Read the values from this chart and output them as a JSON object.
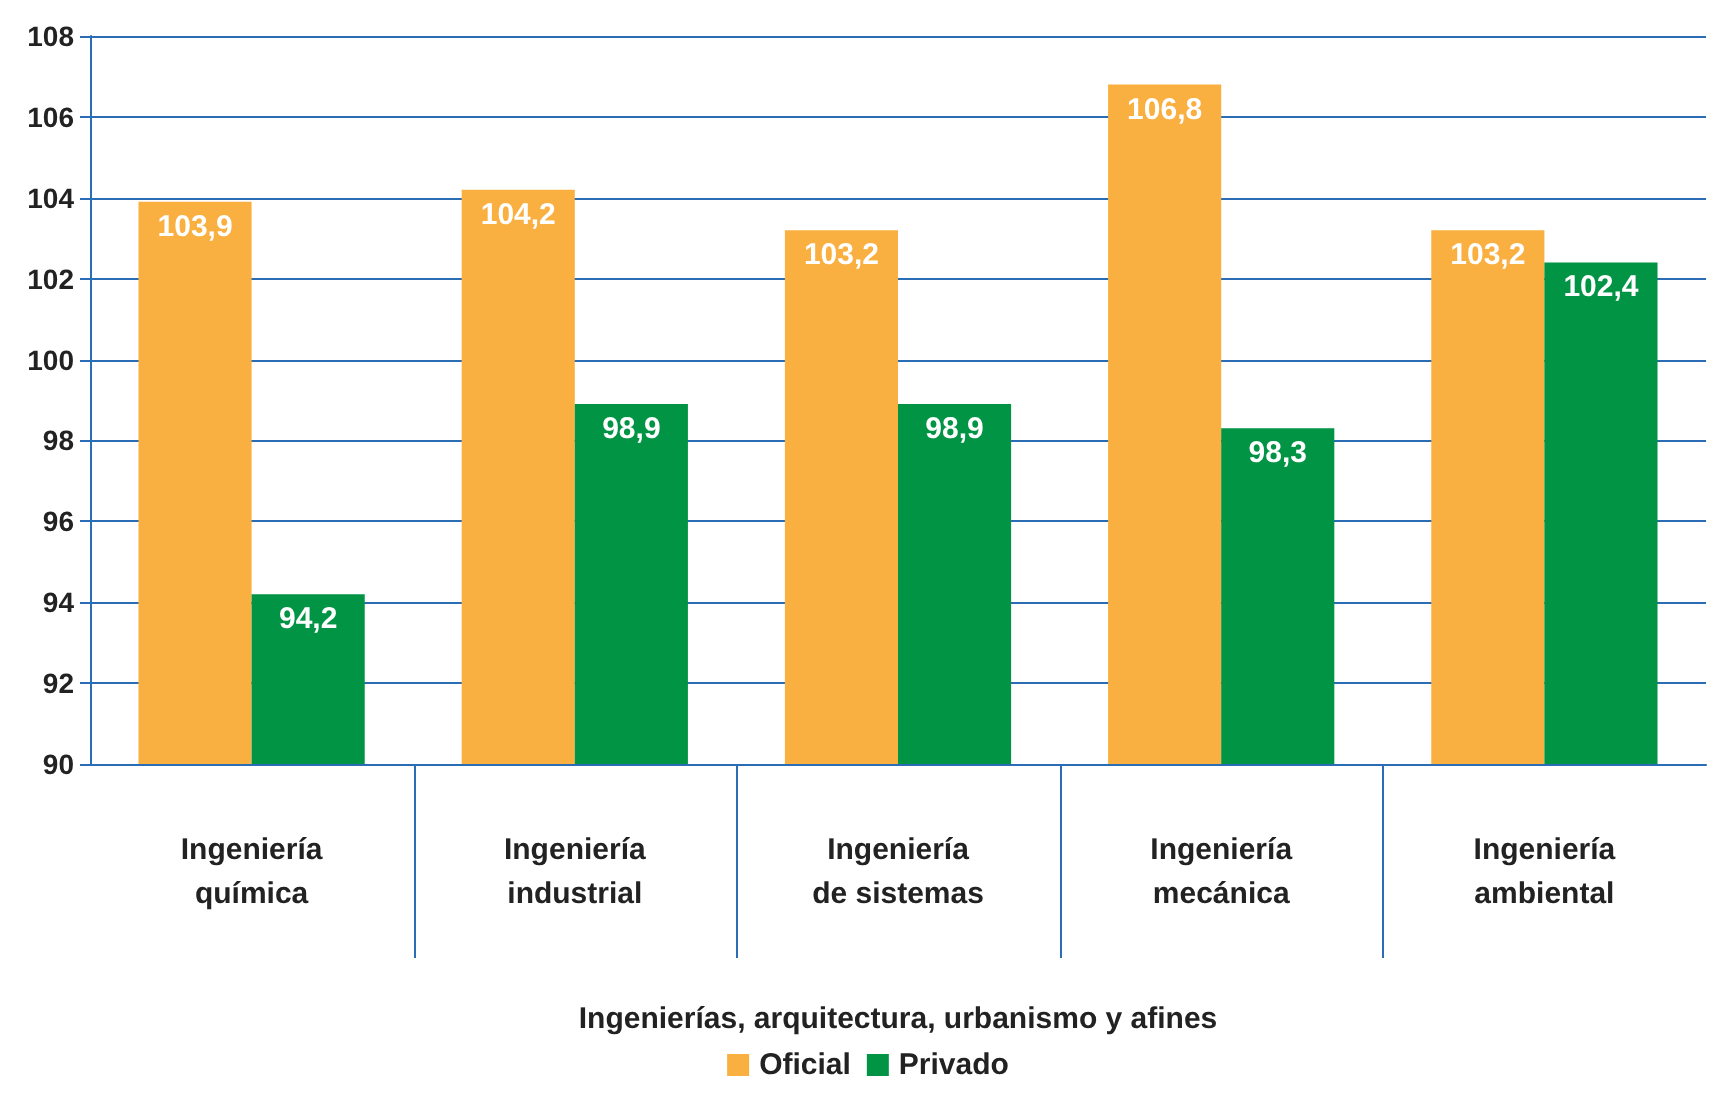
{
  "chart_data": {
    "type": "bar",
    "categories": [
      "Ingeniería\nquímica",
      "Ingeniería\nindustrial",
      "Ingeniería\nde sistemas",
      "Ingeniería\nmecánica",
      "Ingeniería\nambiental"
    ],
    "xlabel": "Ingenierías, arquitectura, urbanismo y afines",
    "series": [
      {
        "name": "Oficial",
        "color": "#f9b040",
        "values": [
          103.9,
          104.2,
          103.2,
          106.8,
          103.2
        ],
        "value_labels": [
          "103,9",
          "104,2",
          "103,2",
          "106,8",
          "103,2"
        ]
      },
      {
        "name": "Privado",
        "color": "#009444",
        "values": [
          94.2,
          98.9,
          98.9,
          98.3,
          102.4
        ],
        "value_labels": [
          "94,2",
          "98,9",
          "98,9",
          "98,3",
          "102,4"
        ]
      }
    ],
    "ylim": [
      90,
      108
    ],
    "yticks": [
      90,
      92,
      94,
      96,
      98,
      100,
      102,
      104,
      106,
      108
    ],
    "grid": "y",
    "legend": "bottom"
  }
}
